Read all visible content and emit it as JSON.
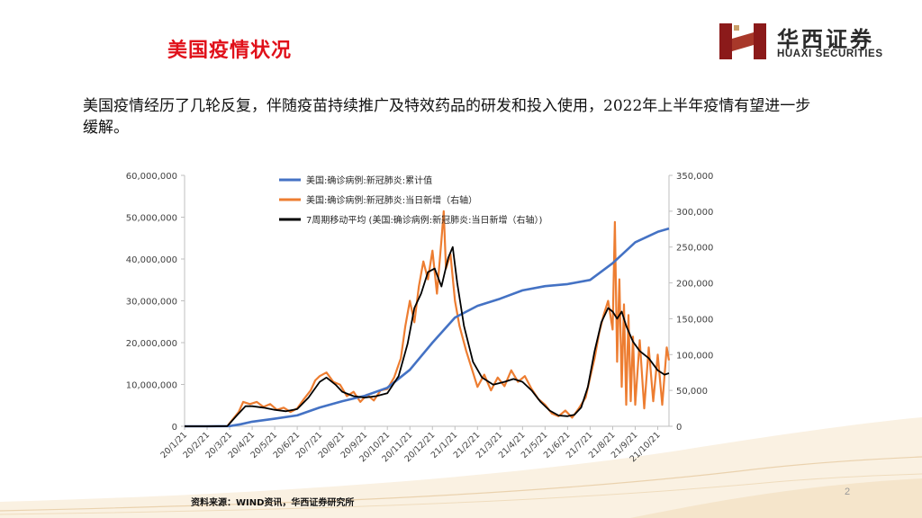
{
  "header": {
    "title": "美国疫情状况",
    "logo_cn": "华西证券",
    "logo_en": "HUAXI SECURITIES"
  },
  "body": {
    "text": "美国疫情经历了几轮反复，伴随疫苗持续推广及特效药品的研发和投入使用，2022年上半年疫情有望进一步缓解。"
  },
  "footer": {
    "source": "资料来源：WIND资讯，华西证券研究所",
    "page_number": "2"
  },
  "colors": {
    "title": "#e0101a",
    "cumulative": "#4472c4",
    "daily": "#ed7d31",
    "ma7": "#000000",
    "logo": "#8b1a1a"
  },
  "chart_data": {
    "type": "line",
    "x_ticks": [
      "20/1/21",
      "20/2/21",
      "20/3/21",
      "20/4/21",
      "20/5/21",
      "20/6/21",
      "20/7/21",
      "20/8/21",
      "20/9/21",
      "20/10/21",
      "20/11/21",
      "20/12/21",
      "21/1/21",
      "21/2/21",
      "21/3/21",
      "21/4/21",
      "21/5/21",
      "21/6/21",
      "21/7/21",
      "21/8/21",
      "21/9/21",
      "21/10/21"
    ],
    "y_left": {
      "min": 0,
      "max": 60000000,
      "ticks": [
        "0",
        "10,000,000",
        "20,000,000",
        "30,000,000",
        "40,000,000",
        "50,000,000",
        "60,000,000"
      ]
    },
    "y_right": {
      "min": 0,
      "max": 350000,
      "ticks": [
        "0",
        "50,000",
        "100,000",
        "150,000",
        "200,000",
        "250,000",
        "300,000",
        "350,000"
      ]
    },
    "legend_position": "top",
    "series": [
      {
        "name": "美国:确诊病例:新冠肺炎:累计值",
        "axis": "left",
        "color": "#4472c4",
        "points": [
          [
            0,
            0
          ],
          [
            1,
            0
          ],
          [
            2,
            50000
          ],
          [
            2.5,
            500000
          ],
          [
            3,
            1100000
          ],
          [
            4,
            1800000
          ],
          [
            5,
            2600000
          ],
          [
            6,
            4500000
          ],
          [
            7,
            6000000
          ],
          [
            8,
            7300000
          ],
          [
            9,
            9200000
          ],
          [
            10,
            13500000
          ],
          [
            11,
            20000000
          ],
          [
            12,
            26000000
          ],
          [
            13,
            28800000
          ],
          [
            14,
            30500000
          ],
          [
            15,
            32500000
          ],
          [
            16,
            33500000
          ],
          [
            17,
            34000000
          ],
          [
            18,
            35000000
          ],
          [
            19,
            39000000
          ],
          [
            20,
            44000000
          ],
          [
            21,
            46500000
          ],
          [
            21.5,
            47300000
          ]
        ]
      },
      {
        "name": "美国:确诊病例:新冠肺炎:当日新增（右轴）",
        "axis": "right",
        "color": "#ed7d31",
        "points": [
          [
            0,
            0
          ],
          [
            1,
            0
          ],
          [
            1.9,
            200
          ],
          [
            2.4,
            20000
          ],
          [
            2.6,
            34000
          ],
          [
            2.9,
            31000
          ],
          [
            3.2,
            34000
          ],
          [
            3.5,
            27000
          ],
          [
            3.8,
            31000
          ],
          [
            4.1,
            23000
          ],
          [
            4.4,
            26000
          ],
          [
            4.7,
            20000
          ],
          [
            5,
            25000
          ],
          [
            5.3,
            38000
          ],
          [
            5.6,
            50000
          ],
          [
            5.8,
            64000
          ],
          [
            6,
            70000
          ],
          [
            6.3,
            75000
          ],
          [
            6.6,
            62000
          ],
          [
            6.9,
            58000
          ],
          [
            7.2,
            42000
          ],
          [
            7.5,
            48000
          ],
          [
            7.8,
            34000
          ],
          [
            8.1,
            44000
          ],
          [
            8.4,
            36000
          ],
          [
            8.7,
            50000
          ],
          [
            9,
            52000
          ],
          [
            9.3,
            68000
          ],
          [
            9.6,
            95000
          ],
          [
            9.8,
            140000
          ],
          [
            10,
            175000
          ],
          [
            10.2,
            145000
          ],
          [
            10.4,
            195000
          ],
          [
            10.6,
            230000
          ],
          [
            10.8,
            205000
          ],
          [
            11,
            245000
          ],
          [
            11.2,
            185000
          ],
          [
            11.4,
            260000
          ],
          [
            11.5,
            300000
          ],
          [
            11.6,
            220000
          ],
          [
            11.8,
            240000
          ],
          [
            12,
            175000
          ],
          [
            12.2,
            140000
          ],
          [
            12.5,
            105000
          ],
          [
            12.8,
            75000
          ],
          [
            13,
            55000
          ],
          [
            13.3,
            72000
          ],
          [
            13.6,
            50000
          ],
          [
            13.9,
            68000
          ],
          [
            14.2,
            56000
          ],
          [
            14.5,
            78000
          ],
          [
            14.8,
            62000
          ],
          [
            15.1,
            70000
          ],
          [
            15.4,
            52000
          ],
          [
            15.7,
            38000
          ],
          [
            16,
            30000
          ],
          [
            16.3,
            18000
          ],
          [
            16.6,
            14000
          ],
          [
            16.9,
            22000
          ],
          [
            17.2,
            12000
          ],
          [
            17.5,
            25000
          ],
          [
            17.8,
            40000
          ],
          [
            18,
            68000
          ],
          [
            18.2,
            95000
          ],
          [
            18.4,
            130000
          ],
          [
            18.6,
            155000
          ],
          [
            18.8,
            175000
          ],
          [
            19,
            135000
          ],
          [
            19.1,
            285000
          ],
          [
            19.2,
            90000
          ],
          [
            19.3,
            205000
          ],
          [
            19.4,
            55000
          ],
          [
            19.5,
            170000
          ],
          [
            19.6,
            30000
          ],
          [
            19.7,
            155000
          ],
          [
            19.8,
            35000
          ],
          [
            19.9,
            125000
          ],
          [
            20,
            30000
          ],
          [
            20.2,
            120000
          ],
          [
            20.4,
            25000
          ],
          [
            20.6,
            110000
          ],
          [
            20.8,
            35000
          ],
          [
            21,
            100000
          ],
          [
            21.2,
            30000
          ],
          [
            21.4,
            110000
          ],
          [
            21.5,
            92000
          ]
        ]
      },
      {
        "name": "7周期移动平均 (美国:确诊病例:新冠肺炎:当日新增（右轴）)",
        "axis": "right",
        "color": "#000000",
        "points": [
          [
            0,
            0
          ],
          [
            1,
            0
          ],
          [
            1.9,
            300
          ],
          [
            2.4,
            18000
          ],
          [
            2.7,
            28000
          ],
          [
            3,
            28000
          ],
          [
            3.5,
            26000
          ],
          [
            4,
            23000
          ],
          [
            4.5,
            21000
          ],
          [
            5,
            24000
          ],
          [
            5.5,
            40000
          ],
          [
            6,
            62000
          ],
          [
            6.3,
            68000
          ],
          [
            6.7,
            58000
          ],
          [
            7,
            48000
          ],
          [
            7.5,
            42000
          ],
          [
            8,
            40000
          ],
          [
            8.5,
            42000
          ],
          [
            9,
            46000
          ],
          [
            9.5,
            70000
          ],
          [
            9.9,
            115000
          ],
          [
            10.2,
            165000
          ],
          [
            10.5,
            185000
          ],
          [
            10.8,
            215000
          ],
          [
            11.1,
            220000
          ],
          [
            11.4,
            195000
          ],
          [
            11.7,
            235000
          ],
          [
            11.9,
            250000
          ],
          [
            12.1,
            200000
          ],
          [
            12.4,
            140000
          ],
          [
            12.8,
            90000
          ],
          [
            13.2,
            68000
          ],
          [
            13.7,
            58000
          ],
          [
            14.2,
            62000
          ],
          [
            14.6,
            66000
          ],
          [
            15,
            62000
          ],
          [
            15.4,
            50000
          ],
          [
            15.8,
            34000
          ],
          [
            16.2,
            22000
          ],
          [
            16.6,
            15000
          ],
          [
            17,
            14000
          ],
          [
            17.3,
            16000
          ],
          [
            17.6,
            26000
          ],
          [
            17.9,
            55000
          ],
          [
            18.2,
            105000
          ],
          [
            18.5,
            145000
          ],
          [
            18.8,
            165000
          ],
          [
            19,
            160000
          ],
          [
            19.2,
            150000
          ],
          [
            19.4,
            160000
          ],
          [
            19.6,
            140000
          ],
          [
            19.9,
            118000
          ],
          [
            20.2,
            105000
          ],
          [
            20.6,
            95000
          ],
          [
            21,
            78000
          ],
          [
            21.3,
            72000
          ],
          [
            21.5,
            74000
          ]
        ]
      }
    ]
  }
}
